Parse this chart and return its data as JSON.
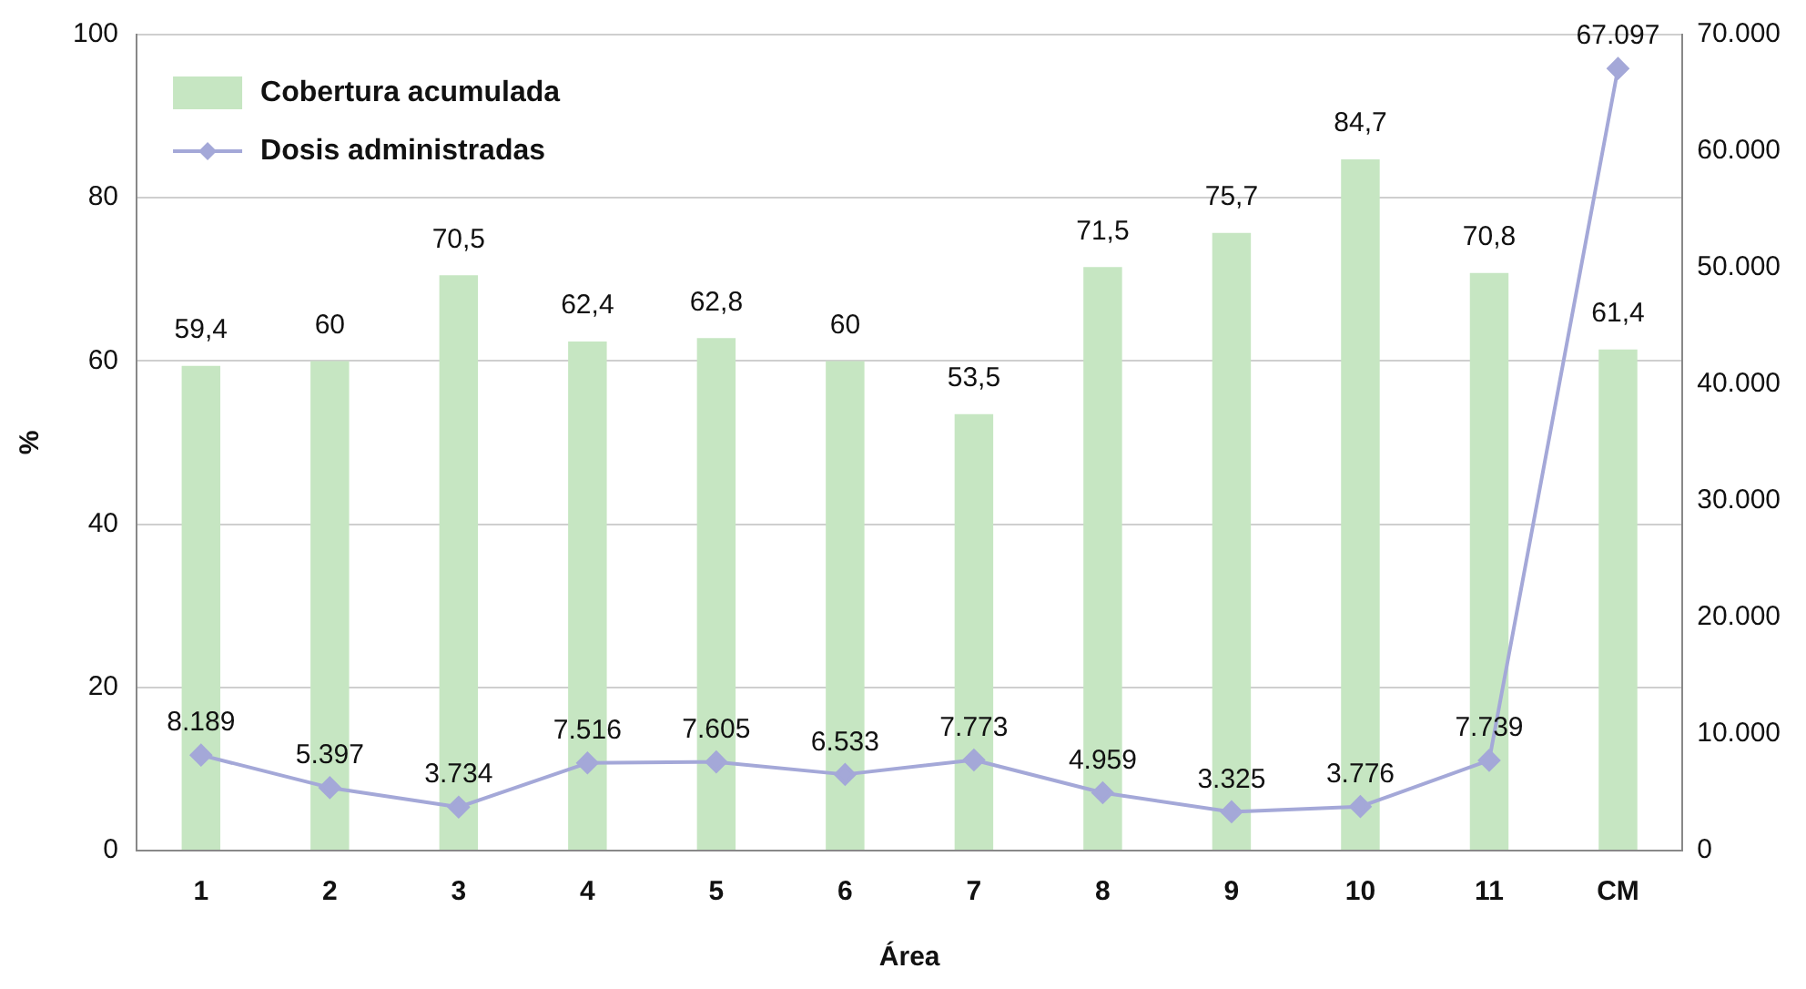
{
  "chart_data": {
    "type": "bar",
    "xlabel": "Área",
    "ylabel": "%",
    "categories": [
      "1",
      "2",
      "3",
      "4",
      "5",
      "6",
      "7",
      "8",
      "9",
      "10",
      "11",
      "CM"
    ],
    "series": [
      {
        "name": "Cobertura acumulada",
        "color": "#c6e6c2",
        "values": [
          59.4,
          60,
          70.5,
          62.4,
          62.8,
          60,
          53.5,
          71.5,
          75.7,
          84.7,
          70.8,
          61.4
        ],
        "value_labels": [
          "59,4",
          "60",
          "70,5",
          "62,4",
          "62,8",
          "60",
          "53,5",
          "71,5",
          "75,7",
          "84,7",
          "70,8",
          "61,4"
        ]
      },
      {
        "name": "Dosis administradas",
        "type": "line",
        "axis": "y2",
        "color": "#a4a8d8",
        "marker": "diamond",
        "values": [
          8189,
          5397,
          3734,
          7516,
          7605,
          6533,
          7773,
          4959,
          3325,
          3776,
          7739,
          67097
        ],
        "value_labels": [
          "8.189",
          "5.397",
          "3.734",
          "7.516",
          "7.605",
          "6.533",
          "7.773",
          "4.959",
          "3.325",
          "3.776",
          "7.739",
          "67.097"
        ]
      }
    ],
    "ylim": [
      0,
      100
    ],
    "yticks": [
      0,
      20,
      40,
      60,
      80,
      100
    ],
    "y2lim": [
      0,
      70000
    ],
    "y2ticks": [
      {
        "value": 0,
        "label": "0"
      },
      {
        "value": 10000,
        "label": "10.000"
      },
      {
        "value": 20000,
        "label": "20.000"
      },
      {
        "value": 30000,
        "label": "30.000"
      },
      {
        "value": 40000,
        "label": "40.000"
      },
      {
        "value": 50000,
        "label": "50.000"
      },
      {
        "value": 60000,
        "label": "60.000"
      },
      {
        "value": 70000,
        "label": "70.000"
      }
    ],
    "grid": "y",
    "legend": "top left"
  }
}
